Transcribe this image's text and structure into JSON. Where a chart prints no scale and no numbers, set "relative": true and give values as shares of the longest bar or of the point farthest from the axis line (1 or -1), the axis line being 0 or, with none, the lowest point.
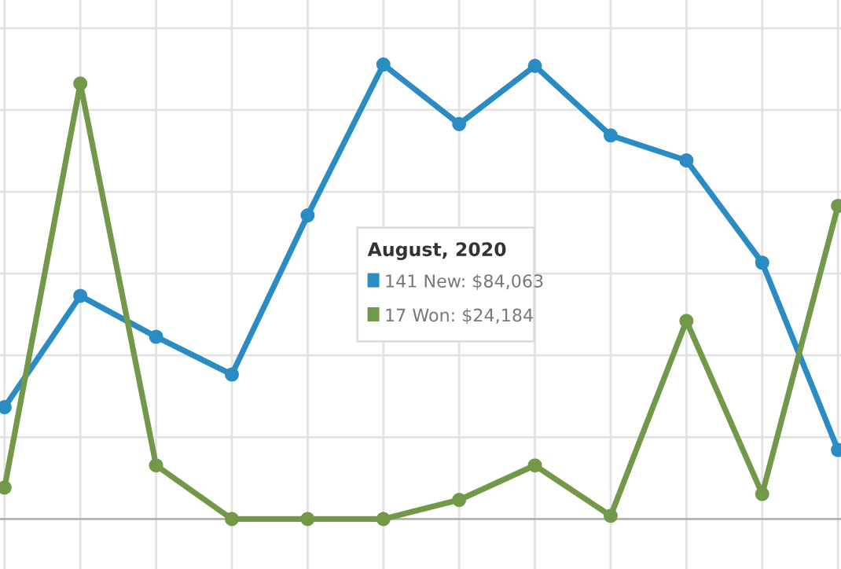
{
  "chart_data": {
    "type": "line",
    "relative": true,
    "categories": [
      null,
      null,
      null,
      null,
      null,
      null,
      null,
      null,
      null,
      null,
      null,
      null
    ],
    "series": [
      {
        "color": "#2b8cc4",
        "values": [
          0.246,
          0.491,
          0.401,
          0.318,
          0.668,
          1,
          0.869,
          0.997,
          0.844,
          0.789,
          0.564,
          0.152
        ]
      },
      {
        "color": "#72994a",
        "values": [
          0.069,
          0.958,
          0.118,
          0,
          0,
          0,
          0.042,
          0.118,
          0.007,
          0.436,
          0.055,
          0.689
        ]
      }
    ],
    "annotations": [
      "August, 2020",
      "141 New: $84,063",
      "17 Won: $24,184"
    ],
    "grid": true,
    "marker": "circle",
    "line_style": "solid",
    "legend": false
  }
}
